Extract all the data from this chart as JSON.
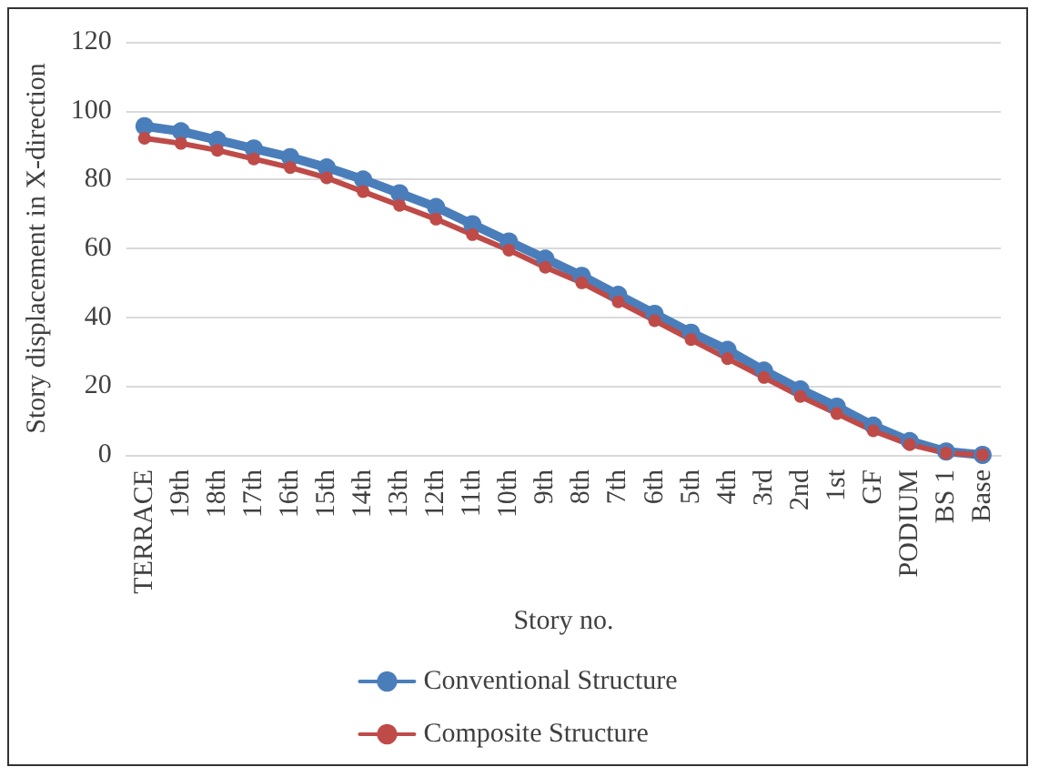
{
  "chart_data": {
    "type": "line",
    "xlabel": "Story no.",
    "ylabel": "Story displacement in X-direction",
    "categories": [
      "TERRACE",
      "19th",
      "18th",
      "17th",
      "16th",
      "15th",
      "14th",
      "13th",
      "12th",
      "11th",
      "10th",
      "9th",
      "8th",
      "7th",
      "6th",
      "5th",
      "4th",
      "3rd",
      "2nd",
      "1st",
      "GF",
      "PODIUM",
      "BS 1",
      "Base"
    ],
    "series": [
      {
        "name": "Conventional Structure",
        "color": "#4a7ebb",
        "values": [
          95.5,
          94,
          91.5,
          89,
          86.5,
          83.5,
          80,
          76,
          72,
          67,
          62,
          57,
          52,
          46.5,
          41,
          35.5,
          30.5,
          24.5,
          19,
          14,
          8.5,
          4,
          1,
          0
        ]
      },
      {
        "name": "Composite Structure",
        "color": "#be4b48",
        "values": [
          92,
          90.5,
          88.5,
          86,
          83.5,
          80.5,
          76.5,
          72.5,
          68.5,
          64,
          59.5,
          54.5,
          50,
          44.5,
          39,
          33.5,
          28,
          22.5,
          17,
          12,
          7,
          3,
          0.5,
          0
        ]
      }
    ],
    "ylim": [
      0,
      120
    ],
    "yticks": [
      0,
      20,
      40,
      60,
      80,
      100,
      120
    ],
    "grid": "y",
    "legend": "bottom",
    "marker": "circle",
    "line_style": "solid"
  }
}
